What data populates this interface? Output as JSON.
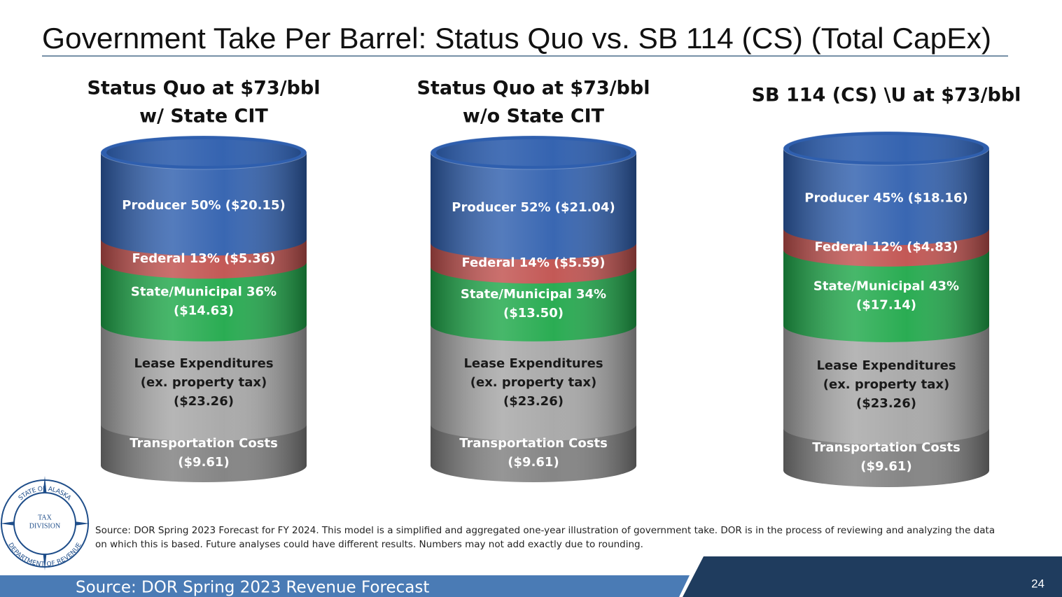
{
  "title": "Government Take Per Barrel:  Status Quo vs. SB 114 (CS) (Total CapEx)",
  "chart_data": [
    {
      "type": "stacked-barrel",
      "title_lines": [
        "Status Quo at $73/bbl",
        "w/ State CIT"
      ],
      "series": [
        {
          "color": "#7f7f7f",
          "label_color": "#ffffff",
          "values": [
            9.61
          ],
          "value_labels": [
            [
              "Transportation Costs",
              "($9.61)"
            ]
          ]
        },
        {
          "color": "#a6a6a6",
          "label_color": "#1a1a1a",
          "values": [
            23.26
          ],
          "value_labels": [
            [
              "Lease Expenditures",
              "(ex. property tax)",
              "($23.26)"
            ]
          ]
        },
        {
          "color": "#1fa84a",
          "label_color": "#ffffff",
          "values": [
            14.63
          ],
          "value_labels": [
            [
              "State/Municipal 36%",
              "($14.63)"
            ]
          ]
        },
        {
          "color": "#c0504d",
          "label_color": "#ffffff",
          "values": [
            5.36
          ],
          "value_labels": [
            [
              "Federal 13% ($5.36)"
            ]
          ]
        },
        {
          "color": "#2f5fae",
          "label_color": "#ffffff",
          "values": [
            20.15
          ],
          "value_labels": [
            [
              "Producer 50% ($20.15)"
            ]
          ]
        }
      ]
    },
    {
      "type": "stacked-barrel",
      "title_lines": [
        "Status Quo at $73/bbl",
        "w/o State CIT"
      ],
      "series": [
        {
          "color": "#7f7f7f",
          "label_color": "#ffffff",
          "values": [
            9.61
          ],
          "value_labels": [
            [
              "Transportation Costs",
              "($9.61)"
            ]
          ]
        },
        {
          "color": "#a6a6a6",
          "label_color": "#1a1a1a",
          "values": [
            23.26
          ],
          "value_labels": [
            [
              "Lease Expenditures",
              "(ex. property tax)",
              "($23.26)"
            ]
          ]
        },
        {
          "color": "#1fa84a",
          "label_color": "#ffffff",
          "values": [
            13.5
          ],
          "value_labels": [
            [
              "State/Municipal 34%",
              "($13.50)"
            ]
          ]
        },
        {
          "color": "#c0504d",
          "label_color": "#ffffff",
          "values": [
            5.59
          ],
          "value_labels": [
            [
              "Federal 14% ($5.59)"
            ]
          ]
        },
        {
          "color": "#2f5fae",
          "label_color": "#ffffff",
          "values": [
            21.04
          ],
          "value_labels": [
            [
              "Producer 52% ($21.04)"
            ]
          ]
        }
      ]
    },
    {
      "type": "stacked-barrel",
      "title_lines": [
        "SB 114 (CS) \\U at $73/bbl"
      ],
      "series": [
        {
          "color": "#7f7f7f",
          "label_color": "#ffffff",
          "values": [
            9.61
          ],
          "value_labels": [
            [
              "Transportation Costs",
              "($9.61)"
            ]
          ]
        },
        {
          "color": "#a6a6a6",
          "label_color": "#1a1a1a",
          "values": [
            23.26
          ],
          "value_labels": [
            [
              "Lease Expenditures",
              "(ex. property tax)",
              "($23.26)"
            ]
          ]
        },
        {
          "color": "#1fa84a",
          "label_color": "#ffffff",
          "values": [
            17.14
          ],
          "value_labels": [
            [
              "State/Municipal 43%",
              "($17.14)"
            ]
          ]
        },
        {
          "color": "#c0504d",
          "label_color": "#ffffff",
          "values": [
            4.83
          ],
          "value_labels": [
            [
              "Federal 12% ($4.83)"
            ]
          ]
        },
        {
          "color": "#2f5fae",
          "label_color": "#ffffff",
          "values": [
            18.16
          ],
          "value_labels": [
            [
              "Producer 45% ($18.16)"
            ]
          ]
        }
      ]
    }
  ],
  "note_lines": [
    "Source:  DOR Spring 2023 Forecast for FY 2024.  This model is a simplified and aggregated one-year illustration of government take.  DOR is in the process of reviewing and analyzing the data",
    "on which this is based.  Future analyses could have different results.  Numbers may not add exactly due to rounding."
  ],
  "logo": {
    "ring_top": "STATE OF ALASKA",
    "ring_bottom": "DEPARTMENT OF REVENUE",
    "center_lines": [
      "TAX",
      "DIVISION"
    ]
  },
  "footer": {
    "source": "Source:  DOR Spring 2023 Revenue Forecast",
    "page_number": "24"
  }
}
